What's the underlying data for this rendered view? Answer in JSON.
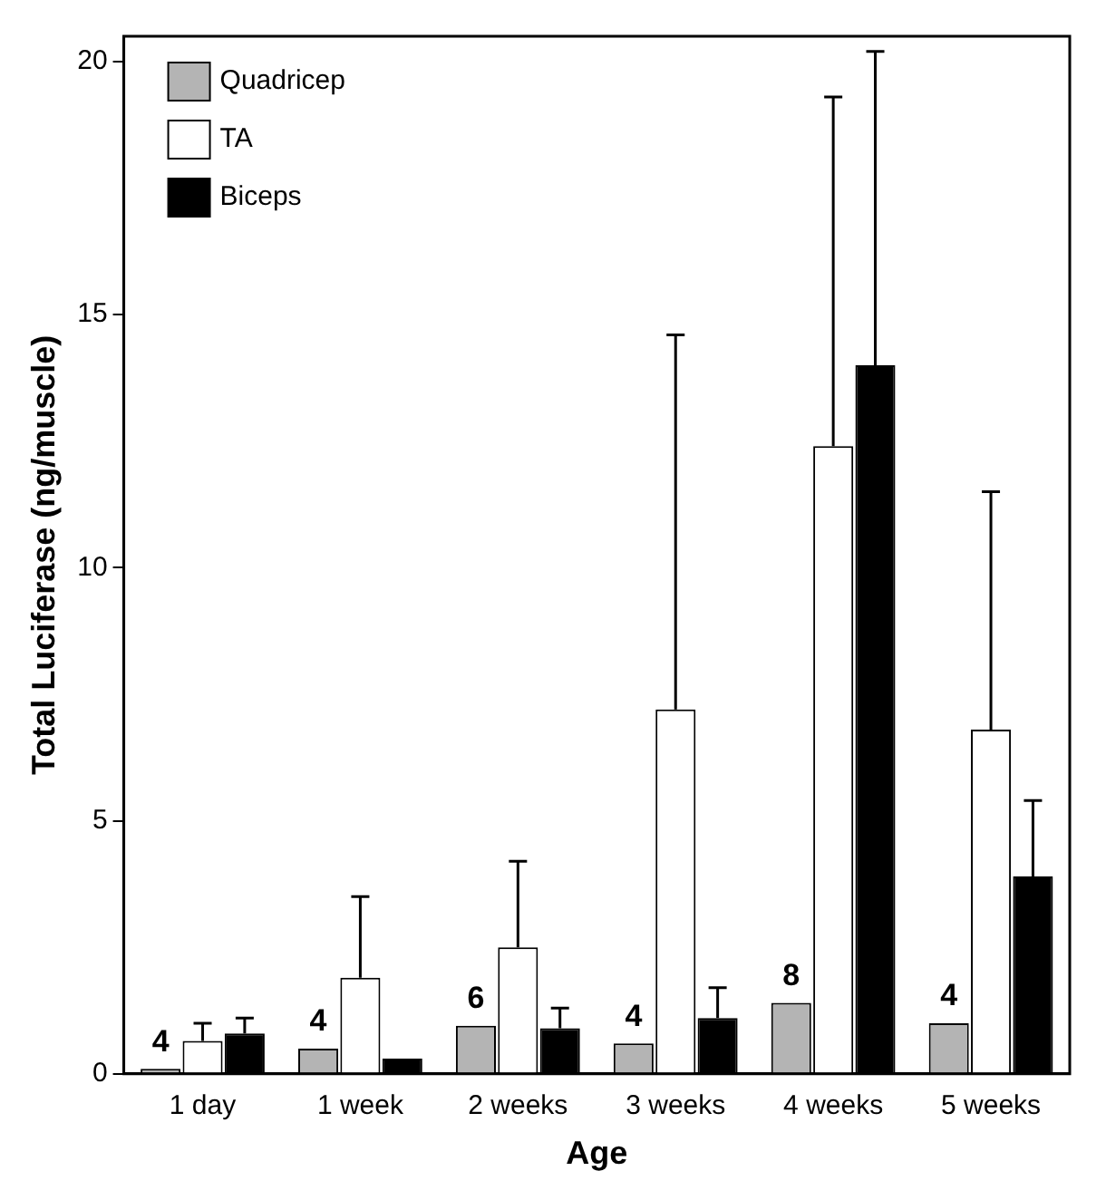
{
  "chart_data": {
    "type": "bar",
    "xlabel": "Age",
    "ylabel": "Total Luciferase (ng/muscle)",
    "categories": [
      "1 day",
      "1 week",
      "2 weeks",
      "3 weeks",
      "4 weeks",
      "5 weeks"
    ],
    "series": [
      {
        "name": "Quadricep",
        "color": "#b4b4b4",
        "values": [
          0.1,
          0.5,
          0.95,
          0.6,
          1.4,
          1.0
        ]
      },
      {
        "name": "TA",
        "color": "#ffffff",
        "values": [
          0.65,
          1.9,
          2.5,
          7.2,
          12.4,
          6.8
        ],
        "errors": [
          [
            0.65,
            1.0
          ],
          [
            1.9,
            3.5
          ],
          [
            2.5,
            4.2
          ],
          [
            7.2,
            14.6
          ],
          [
            12.4,
            19.3
          ],
          [
            6.8,
            11.5
          ]
        ]
      },
      {
        "name": "Biceps",
        "color": "#000000",
        "values": [
          0.8,
          0.3,
          0.9,
          1.1,
          14.0,
          3.9
        ],
        "errors": [
          [
            0.8,
            1.1
          ],
          null,
          [
            0.9,
            1.3
          ],
          [
            1.1,
            1.7
          ],
          [
            14.0,
            20.2
          ],
          [
            3.9,
            5.4
          ]
        ]
      }
    ],
    "annotations": [
      "4",
      "4",
      "6",
      "4",
      "8",
      "4"
    ],
    "ylim": [
      0,
      20.5
    ],
    "yticks": [
      0,
      5,
      10,
      15,
      20
    ],
    "grid": false,
    "legend": "top left"
  }
}
